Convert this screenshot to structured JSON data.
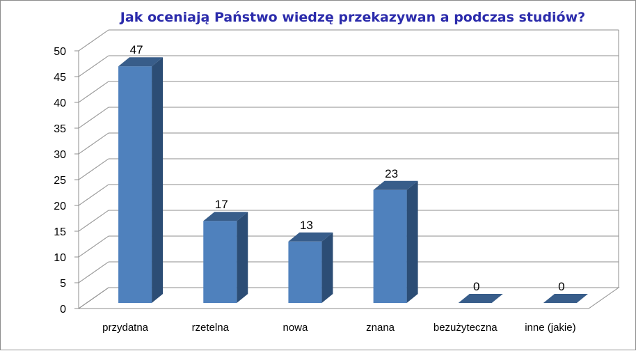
{
  "chart_data": {
    "type": "bar",
    "title": "Jak oceniają Państwo wiedzę przekazywan a podczas studiów?",
    "categories": [
      "przydatna",
      "rzetelna",
      "nowa",
      "znana",
      "bezużyteczna",
      "inne (jakie)"
    ],
    "values": [
      47,
      17,
      13,
      23,
      0,
      0
    ],
    "ylim": [
      0,
      50
    ],
    "yticks": [
      0,
      5,
      10,
      15,
      20,
      25,
      30,
      35,
      40,
      45,
      50
    ],
    "xlabel": "",
    "ylabel": "",
    "grid": true,
    "legend": "none",
    "style": "3d-column",
    "colors": {
      "bar_front": "#4f81bd",
      "bar_side": "#2c4d75",
      "bar_top": "#385d8a",
      "title": "#2b2bab",
      "grid": "#8c8c8c"
    }
  }
}
